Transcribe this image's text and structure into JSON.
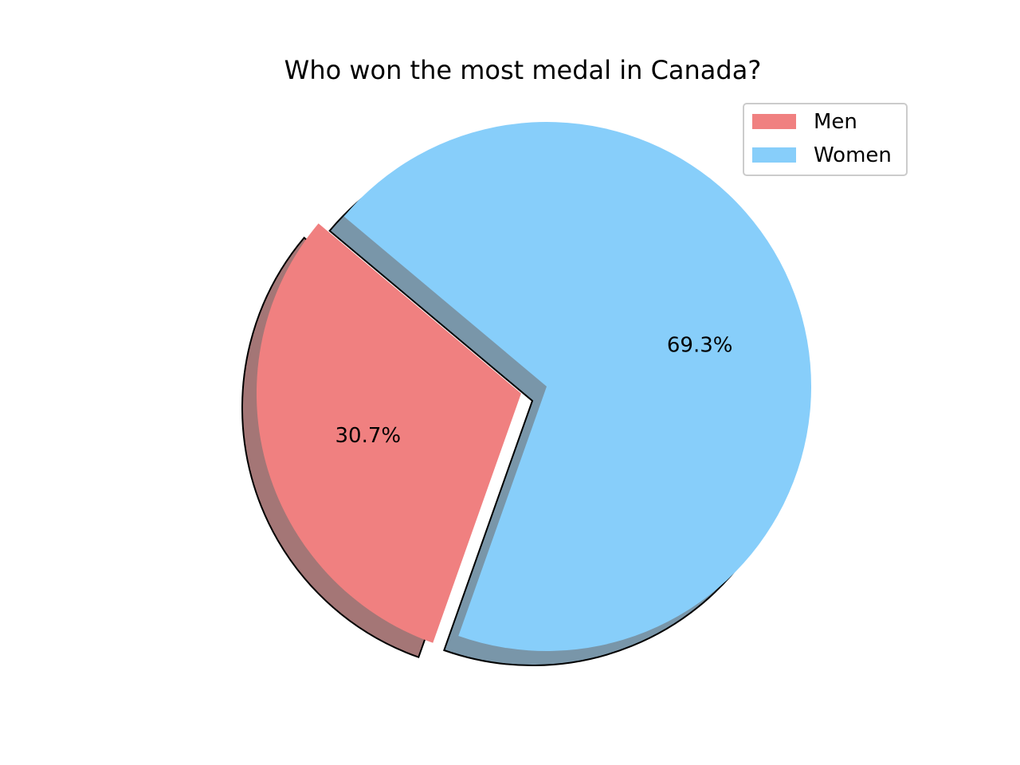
{
  "chart_data": {
    "type": "pie",
    "title": "Who won the most medal in Canada?",
    "labels": [
      "Men",
      "Women"
    ],
    "values": [
      30.7,
      69.3
    ],
    "value_labels": [
      "30.7%",
      "69.3%"
    ],
    "colors": [
      "#f08080",
      "#87cefa"
    ],
    "explode": [
      0.1,
      0
    ],
    "shadow": true,
    "start_angle_deg": 140,
    "legend_placement": "top-right"
  }
}
